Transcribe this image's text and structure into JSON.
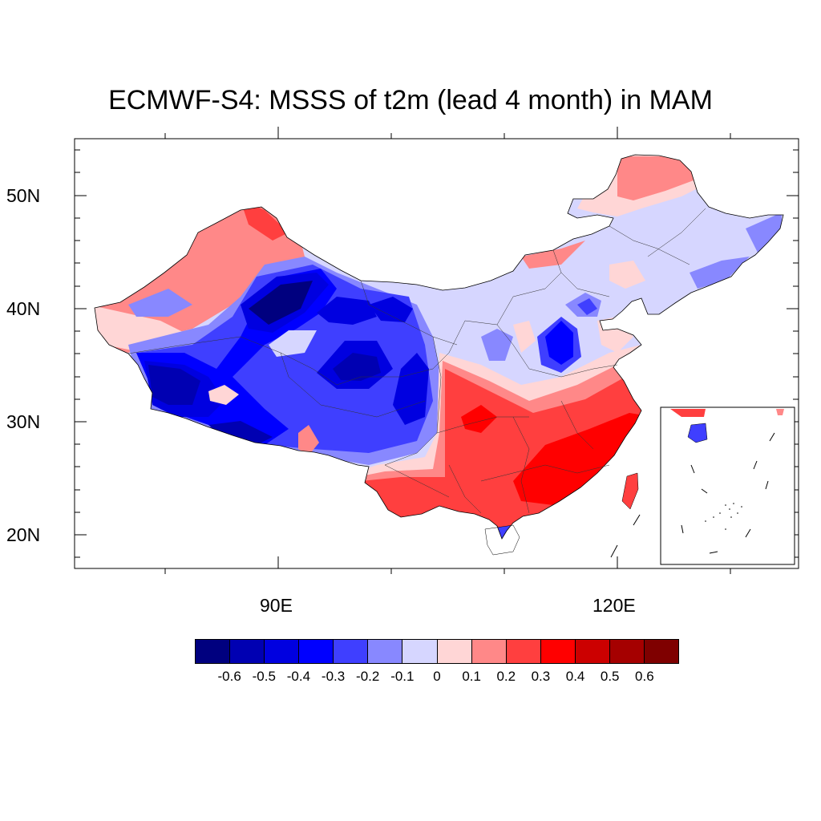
{
  "title": "ECMWF-S4: MSSS of t2m (lead 4 month) in MAM",
  "axes": {
    "lat_labels": [
      "50N",
      "40N",
      "30N",
      "20N"
    ],
    "lon_labels": [
      "90E",
      "120E"
    ]
  },
  "colorbar": {
    "colors": [
      "#00007f",
      "#0000b2",
      "#0000e0",
      "#0000ff",
      "#3f3fff",
      "#8888ff",
      "#d6d6ff",
      "#ffd6d6",
      "#ff8888",
      "#ff3f3f",
      "#ff0000",
      "#cc0000",
      "#a50000",
      "#7f0000"
    ],
    "labels": [
      "-0.6",
      "-0.5",
      "-0.4",
      "-0.3",
      "-0.2",
      "-0.1",
      "0",
      "0.1",
      "0.2",
      "0.3",
      "0.4",
      "0.5",
      "0.6"
    ]
  }
}
